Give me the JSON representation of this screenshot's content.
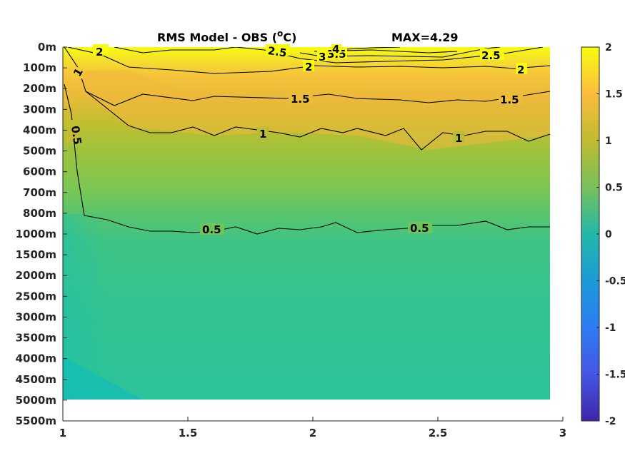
{
  "chart_data": {
    "type": "heatmap",
    "title": "RMS Model - OBS (",
    "title_superscript": "o",
    "title_unit": "C)",
    "max_label": "MAX=4.29",
    "xlabel": "",
    "ylabel": "",
    "x_ticks": [
      "1",
      "1.5",
      "2",
      "2.5",
      "3"
    ],
    "xlim": [
      1,
      3
    ],
    "y_ticks": [
      "0m",
      "100m",
      "200m",
      "300m",
      "400m",
      "500m",
      "600m",
      "700m",
      "800m",
      "1000m",
      "1500m",
      "2000m",
      "2500m",
      "3000m",
      "3500m",
      "4000m",
      "4500m",
      "5000m",
      "5500m"
    ],
    "data_depth_extent": "5000m",
    "colorbar": {
      "ticks": [
        "2",
        "1.5",
        "1",
        "0.5",
        "0",
        "-0.5",
        "-1",
        "-1.5",
        "-2"
      ],
      "range": [
        -2,
        2
      ],
      "colormap": "parula"
    },
    "contour_levels": [
      0.5,
      1,
      1.5,
      2,
      2.5,
      3,
      3.5,
      4
    ],
    "contour_labels": [
      {
        "text": "2",
        "level": 2
      },
      {
        "text": "2.5",
        "level": 2.5
      },
      {
        "text": "3",
        "level": 3
      },
      {
        "text": "3.5",
        "level": 3.5
      },
      {
        "text": "4",
        "level": 4
      },
      {
        "text": "2",
        "level": 2
      },
      {
        "text": "2.5",
        "level": 2.5
      },
      {
        "text": "2",
        "level": 2
      },
      {
        "text": "1",
        "level": 1
      },
      {
        "text": "1.5",
        "level": 1.5
      },
      {
        "text": "1.5",
        "level": 1.5
      },
      {
        "text": "1",
        "level": 1
      },
      {
        "text": "1",
        "level": 1
      },
      {
        "text": "0.5",
        "level": 0.5
      },
      {
        "text": "0.5",
        "level": 0.5
      },
      {
        "text": "0.5",
        "level": 0.5
      }
    ],
    "field_depth_profile": [
      {
        "depth": "0m",
        "value": 2.0
      },
      {
        "depth": "100m",
        "value": 1.9
      },
      {
        "depth": "200m",
        "value": 1.5
      },
      {
        "depth": "300m",
        "value": 1.3
      },
      {
        "depth": "400m",
        "value": 1.0
      },
      {
        "depth": "500m",
        "value": 0.85
      },
      {
        "depth": "600m",
        "value": 0.75
      },
      {
        "depth": "700m",
        "value": 0.65
      },
      {
        "depth": "800m",
        "value": 0.55
      },
      {
        "depth": "1000m",
        "value": 0.45
      },
      {
        "depth": "1500m",
        "value": 0.35
      },
      {
        "depth": "2000m",
        "value": 0.3
      },
      {
        "depth": "5000m",
        "value": 0.25
      }
    ]
  }
}
